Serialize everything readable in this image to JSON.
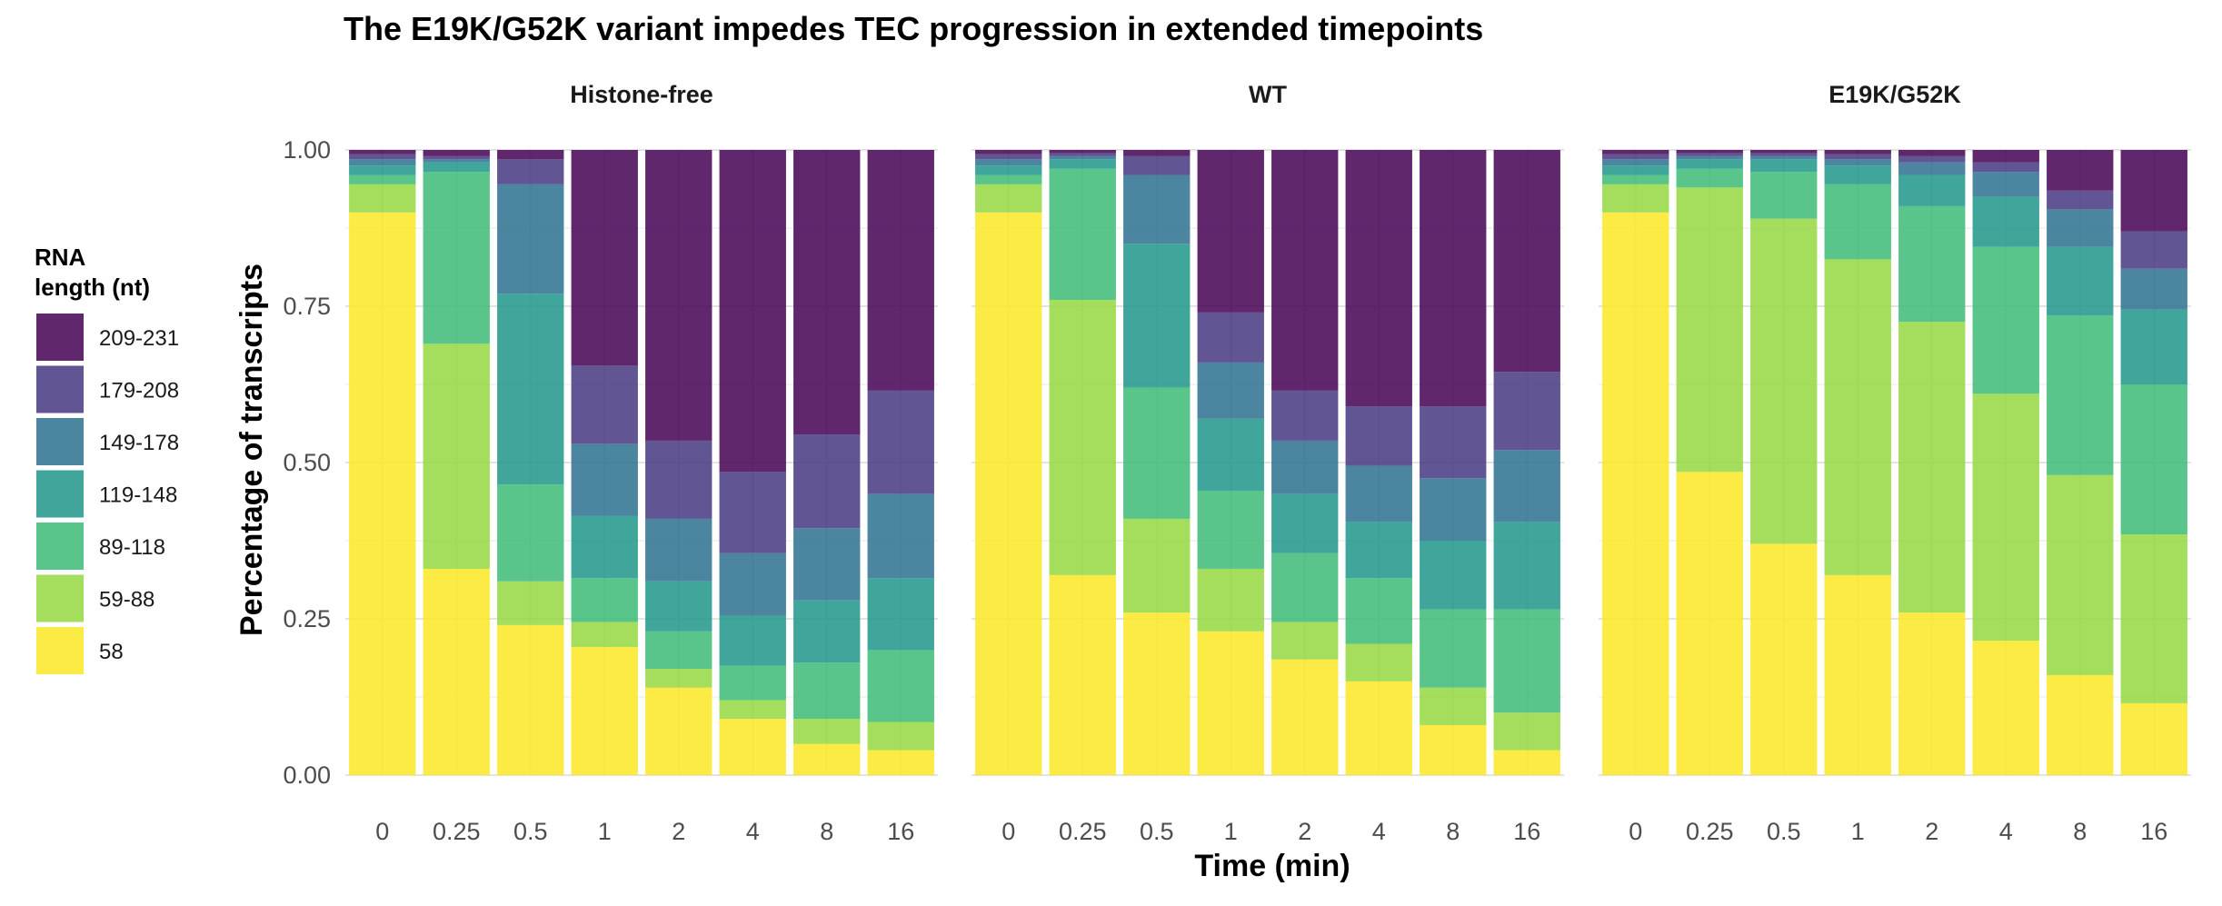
{
  "chart_data": {
    "type": "bar",
    "stacked": true,
    "title": "The E19K/G52K variant impedes TEC progression in extended timepoints",
    "xlabel": "Time (min)",
    "ylabel": "Percentage of transcripts",
    "ylim": [
      0,
      1
    ],
    "yticks": [
      "0.00",
      "0.25",
      "0.50",
      "0.75",
      "1.00"
    ],
    "grid": true,
    "legend": {
      "title_lines": [
        "RNA",
        "length (nt)"
      ],
      "position": "left"
    },
    "categories": [
      "0",
      "0.25",
      "0.5",
      "1",
      "2",
      "4",
      "8",
      "16"
    ],
    "series": [
      {
        "name": "58",
        "color": "#FDE725"
      },
      {
        "name": "59-88",
        "color": "#95D840"
      },
      {
        "name": "89-118",
        "color": "#3CBB75"
      },
      {
        "name": "119-148",
        "color": "#1F968B"
      },
      {
        "name": "149-178",
        "color": "#2D708E"
      },
      {
        "name": "179-208",
        "color": "#453781"
      },
      {
        "name": "209-231",
        "color": "#440154"
      }
    ],
    "facets": [
      {
        "label": "Histone-free",
        "values": [
          [
            0.9,
            0.045,
            0.015,
            0.015,
            0.01,
            0.008,
            0.007
          ],
          [
            0.33,
            0.36,
            0.275,
            0.015,
            0.005,
            0.005,
            0.01
          ],
          [
            0.24,
            0.07,
            0.155,
            0.305,
            0.175,
            0.04,
            0.015
          ],
          [
            0.205,
            0.04,
            0.07,
            0.1,
            0.115,
            0.125,
            0.345
          ],
          [
            0.14,
            0.03,
            0.06,
            0.08,
            0.1,
            0.125,
            0.465
          ],
          [
            0.09,
            0.03,
            0.055,
            0.08,
            0.1,
            0.13,
            0.515
          ],
          [
            0.05,
            0.04,
            0.09,
            0.1,
            0.115,
            0.15,
            0.455
          ],
          [
            0.04,
            0.045,
            0.115,
            0.115,
            0.135,
            0.165,
            0.385
          ]
        ]
      },
      {
        "label": "WT",
        "values": [
          [
            0.9,
            0.045,
            0.015,
            0.015,
            0.01,
            0.008,
            0.007
          ],
          [
            0.32,
            0.44,
            0.21,
            0.015,
            0.005,
            0.005,
            0.005
          ],
          [
            0.26,
            0.15,
            0.21,
            0.23,
            0.11,
            0.03,
            0.01
          ],
          [
            0.23,
            0.1,
            0.125,
            0.115,
            0.09,
            0.08,
            0.26
          ],
          [
            0.185,
            0.06,
            0.11,
            0.095,
            0.085,
            0.08,
            0.385
          ],
          [
            0.15,
            0.06,
            0.105,
            0.09,
            0.09,
            0.095,
            0.41
          ],
          [
            0.08,
            0.06,
            0.125,
            0.11,
            0.1,
            0.115,
            0.41
          ],
          [
            0.04,
            0.06,
            0.165,
            0.14,
            0.115,
            0.125,
            0.355
          ]
        ]
      },
      {
        "label": "E19K/G52K",
        "values": [
          [
            0.9,
            0.045,
            0.015,
            0.015,
            0.01,
            0.008,
            0.007
          ],
          [
            0.485,
            0.455,
            0.03,
            0.015,
            0.005,
            0.005,
            0.005
          ],
          [
            0.37,
            0.52,
            0.075,
            0.02,
            0.005,
            0.005,
            0.005
          ],
          [
            0.32,
            0.505,
            0.12,
            0.03,
            0.01,
            0.008,
            0.007
          ],
          [
            0.26,
            0.465,
            0.185,
            0.05,
            0.02,
            0.01,
            0.01
          ],
          [
            0.215,
            0.395,
            0.235,
            0.08,
            0.04,
            0.015,
            0.02
          ],
          [
            0.16,
            0.32,
            0.255,
            0.11,
            0.06,
            0.03,
            0.065
          ],
          [
            0.115,
            0.27,
            0.24,
            0.12,
            0.065,
            0.06,
            0.13
          ]
        ]
      }
    ]
  }
}
